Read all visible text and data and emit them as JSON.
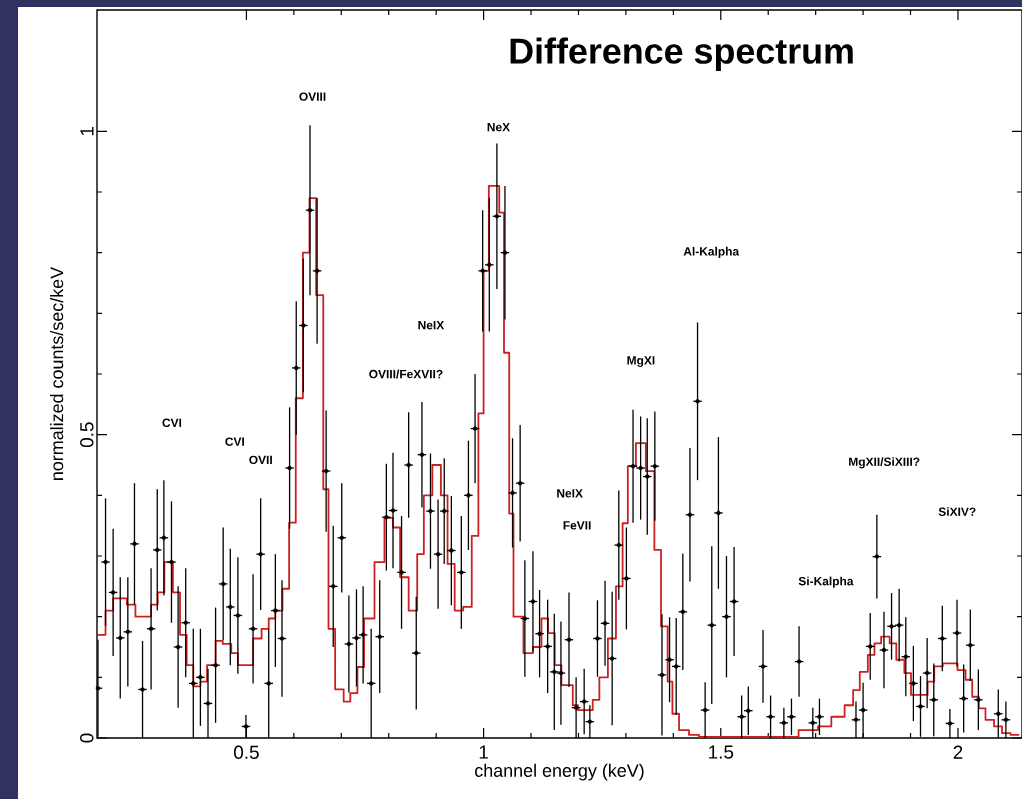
{
  "chart_data": {
    "type": "scatter",
    "title": "Difference spectrum",
    "xlabel": "channel energy (keV)",
    "ylabel": "normalized counts/sec/keV",
    "xlim": [
      0.185,
      2.135
    ],
    "ylim": [
      0,
      1.2
    ],
    "xticks": [
      0.5,
      1,
      1.5,
      2
    ],
    "yticks": [
      0,
      0.5,
      1
    ],
    "annotations": [
      "OVIII",
      "NeX",
      "Al-Kalpha",
      "NeIX",
      "OVIII/FeXVII?",
      "MgXI",
      "CVI",
      "CVI",
      "OVII",
      "NeIX",
      "FeVII",
      "MgXII/SiXIII?",
      "SiXIV?",
      "Si-Kalpha"
    ],
    "series": [
      {
        "color": "#000000",
        "x": [
          0.187,
          0.203,
          0.219,
          0.234,
          0.25,
          0.264,
          0.281,
          0.299,
          0.312,
          0.326,
          0.342,
          0.356,
          0.372,
          0.388,
          0.403,
          0.419,
          0.435,
          0.451,
          0.466,
          0.482,
          0.499,
          0.514,
          0.53,
          0.547,
          0.561,
          0.575,
          0.591,
          0.605,
          0.62,
          0.634,
          0.649,
          0.668,
          0.683,
          0.701,
          0.716,
          0.732,
          0.746,
          0.763,
          0.781,
          0.795,
          0.809,
          0.827,
          0.842,
          0.858,
          0.87,
          0.888,
          0.904,
          0.917,
          0.932,
          0.953,
          0.968,
          0.982,
          0.998,
          1.012,
          1.028,
          1.045,
          1.061,
          1.077,
          1.087,
          1.104,
          1.118,
          1.135,
          1.149,
          1.163,
          1.18,
          1.195,
          1.212,
          1.224,
          1.24,
          1.256,
          1.271,
          1.285,
          1.301,
          1.315,
          1.331,
          1.345,
          1.361,
          1.376,
          1.392,
          1.406,
          1.42,
          1.435,
          1.451,
          1.467,
          1.481,
          1.495,
          1.512,
          1.528,
          1.544,
          1.558,
          1.589,
          1.605,
          1.633,
          1.649,
          1.665,
          1.694,
          1.708,
          1.785,
          1.8,
          1.815,
          1.829,
          1.844,
          1.86,
          1.876,
          1.89,
          1.906,
          1.921,
          1.935,
          1.949,
          1.967,
          1.983,
          1.998,
          2.012,
          2.026,
          2.043,
          2.085,
          2.101
        ],
        "values": [
          0.082,
          0.29,
          0.24,
          0.165,
          0.175,
          0.32,
          0.08,
          0.18,
          0.31,
          0.33,
          0.29,
          0.15,
          0.19,
          0.09,
          0.1,
          0.057,
          0.12,
          0.254,
          0.216,
          0.202,
          0.019,
          0.18,
          0.303,
          0.09,
          0.21,
          0.164,
          0.445,
          0.61,
          0.68,
          0.87,
          0.77,
          0.44,
          0.25,
          0.33,
          0.155,
          0.165,
          0.17,
          0.09,
          0.167,
          0.364,
          0.375,
          0.273,
          0.45,
          0.14,
          0.467,
          0.374,
          0.303,
          0.374,
          0.309,
          0.273,
          0.4,
          0.51,
          0.77,
          0.78,
          0.86,
          0.8,
          0.404,
          0.42,
          0.197,
          0.225,
          0.172,
          0.151,
          0.109,
          0.107,
          0.162,
          0.05,
          0.06,
          0.027,
          0.164,
          0.189,
          0.131,
          0.318,
          0.263,
          0.448,
          0.445,
          0.431,
          0.448,
          0.104,
          0.129,
          0.118,
          0.208,
          0.368,
          0.555,
          0.046,
          0.186,
          0.371,
          0.2,
          0.225,
          0.035,
          0.045,
          0.118,
          0.035,
          0.025,
          0.035,
          0.126,
          0.025,
          0.035,
          0.03,
          0.046,
          0.151,
          0.299,
          0.145,
          0.184,
          0.186,
          0.134,
          0.09,
          0.052,
          0.107,
          0.063,
          0.164,
          0.024,
          0.173,
          0.065,
          0.153,
          0.063,
          0.04,
          0.03
        ],
        "errors": [
          0.08,
          0.105,
          0.105,
          0.1,
          0.09,
          0.1,
          0.08,
          0.1,
          0.1,
          0.095,
          0.1,
          0.1,
          0.09,
          0.09,
          0.08,
          0.057,
          0.095,
          0.093,
          0.096,
          0.096,
          0.019,
          0.09,
          0.092,
          0.09,
          0.093,
          0.096,
          0.1,
          0.11,
          0.11,
          0.14,
          0.12,
          0.1,
          0.1,
          0.09,
          0.08,
          0.08,
          0.08,
          0.09,
          0.093,
          0.088,
          0.095,
          0.093,
          0.087,
          0.093,
          0.087,
          0.095,
          0.09,
          0.087,
          0.09,
          0.093,
          0.09,
          0.09,
          0.1,
          0.11,
          0.12,
          0.11,
          0.09,
          0.096,
          0.096,
          0.083,
          0.072,
          0.077,
          0.096,
          0.085,
          0.078,
          0.05,
          0.054,
          0.027,
          0.063,
          0.07,
          0.11,
          0.09,
          0.084,
          0.093,
          0.085,
          0.096,
          0.09,
          0.1,
          0.07,
          0.08,
          0.096,
          0.11,
          0.13,
          0.046,
          0.13,
          0.125,
          0.1,
          0.09,
          0.035,
          0.04,
          0.06,
          0.035,
          0.025,
          0.03,
          0.058,
          0.025,
          0.03,
          0.03,
          0.045,
          0.055,
          0.069,
          0.063,
          0.055,
          0.06,
          0.065,
          0.062,
          0.05,
          0.058,
          0.06,
          0.054,
          0.024,
          0.055,
          0.056,
          0.059,
          0.05,
          0.04,
          0.03
        ],
        "xerrors": [
          0.009,
          0.009,
          0.009,
          0.009,
          0.009,
          0.009,
          0.009,
          0.009,
          0.009,
          0.009,
          0.009,
          0.009,
          0.009,
          0.009,
          0.009,
          0.009,
          0.009,
          0.009,
          0.009,
          0.009,
          0.009,
          0.009,
          0.009,
          0.009,
          0.009,
          0.009,
          0.009,
          0.009,
          0.009,
          0.009,
          0.009,
          0.009,
          0.009,
          0.009,
          0.009,
          0.009,
          0.009,
          0.009,
          0.009,
          0.009,
          0.009,
          0.009,
          0.009,
          0.009,
          0.009,
          0.009,
          0.009,
          0.009,
          0.009,
          0.009,
          0.009,
          0.009,
          0.009,
          0.009,
          0.009,
          0.009,
          0.009,
          0.009,
          0.009,
          0.009,
          0.009,
          0.009,
          0.009,
          0.009,
          0.009,
          0.009,
          0.009,
          0.009,
          0.009,
          0.009,
          0.009,
          0.009,
          0.009,
          0.009,
          0.009,
          0.009,
          0.009,
          0.009,
          0.009,
          0.009,
          0.009,
          0.009,
          0.009,
          0.009,
          0.009,
          0.009,
          0.009,
          0.009,
          0.009,
          0.009,
          0.009,
          0.009,
          0.009,
          0.009,
          0.009,
          0.009,
          0.009,
          0.009,
          0.009,
          0.009,
          0.009,
          0.009,
          0.009,
          0.009,
          0.009,
          0.009,
          0.009,
          0.009,
          0.009,
          0.009,
          0.009,
          0.009,
          0.009,
          0.009,
          0.009,
          0.009,
          0.009
        ]
      },
      {
        "type": "step",
        "color": "#cc2020",
        "x": [
          0.187,
          0.203,
          0.219,
          0.248,
          0.266,
          0.299,
          0.313,
          0.327,
          0.345,
          0.36,
          0.374,
          0.388,
          0.403,
          0.417,
          0.435,
          0.45,
          0.468,
          0.482,
          0.5,
          0.514,
          0.532,
          0.547,
          0.561,
          0.576,
          0.59,
          0.604,
          0.619,
          0.633,
          0.647,
          0.662,
          0.673,
          0.687,
          0.705,
          0.719,
          0.734,
          0.748,
          0.77,
          0.791,
          0.809,
          0.824,
          0.842,
          0.86,
          0.874,
          0.892,
          0.91,
          0.924,
          0.939,
          0.957,
          0.975,
          0.989,
          1.0,
          1.011,
          1.033,
          1.043,
          1.054,
          1.063,
          1.084,
          1.104,
          1.122,
          1.136,
          1.15,
          1.164,
          1.188,
          1.199,
          1.23,
          1.244,
          1.262,
          1.279,
          1.293,
          1.304,
          1.321,
          1.342,
          1.36,
          1.374,
          1.388,
          1.398,
          1.412,
          1.433,
          1.454,
          1.664,
          1.705,
          1.733,
          1.761,
          1.779,
          1.793,
          1.81,
          1.824,
          1.838,
          1.856,
          1.87,
          1.887,
          1.901,
          1.936,
          1.95,
          1.968,
          1.999,
          2.016,
          2.03,
          2.044,
          2.058,
          2.076,
          2.093,
          2.111,
          2.129
        ],
        "values": [
          0.17,
          0.21,
          0.23,
          0.22,
          0.2,
          0.22,
          0.24,
          0.29,
          0.24,
          0.17,
          0.12,
          0.085,
          0.093,
          0.12,
          0.16,
          0.155,
          0.14,
          0.12,
          0.12,
          0.164,
          0.18,
          0.197,
          0.21,
          0.246,
          0.355,
          0.56,
          0.8,
          0.89,
          0.73,
          0.41,
          0.18,
          0.08,
          0.06,
          0.074,
          0.117,
          0.197,
          0.29,
          0.363,
          0.347,
          0.265,
          0.21,
          0.303,
          0.4,
          0.45,
          0.4,
          0.287,
          0.21,
          0.216,
          0.333,
          0.535,
          0.77,
          0.91,
          0.866,
          0.635,
          0.37,
          0.2,
          0.14,
          0.15,
          0.197,
          0.173,
          0.12,
          0.087,
          0.054,
          0.046,
          0.063,
          0.1,
          0.164,
          0.25,
          0.354,
          0.448,
          0.486,
          0.44,
          0.31,
          0.184,
          0.093,
          0.04,
          0.013,
          0.005,
          0.002,
          0.013,
          0.019,
          0.035,
          0.054,
          0.079,
          0.109,
          0.137,
          0.156,
          0.167,
          0.156,
          0.129,
          0.107,
          0.071,
          0.093,
          0.118,
          0.123,
          0.112,
          0.096,
          0.068,
          0.049,
          0.03,
          0.019,
          0.008,
          0.005,
          0.005
        ]
      }
    ]
  }
}
